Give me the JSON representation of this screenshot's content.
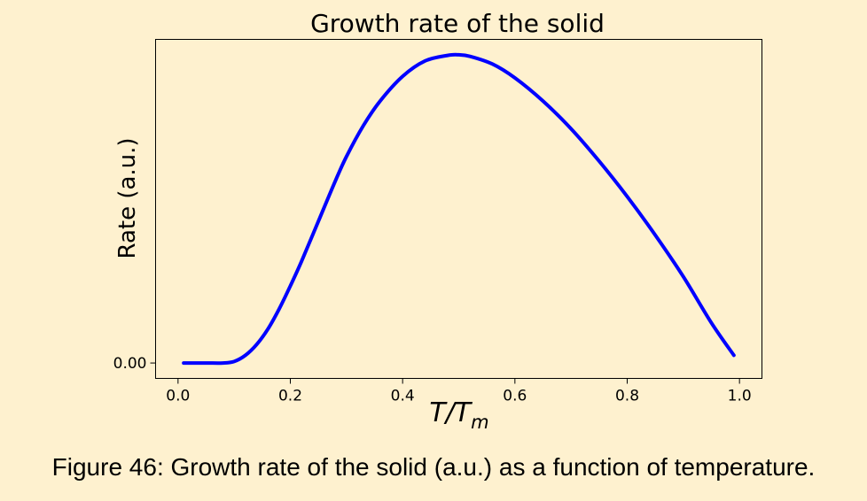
{
  "chart_data": {
    "type": "line",
    "title": "Growth rate of the solid",
    "xlabel": "T/T_m",
    "xlabel_parts": {
      "main": "T/T",
      "subscript": "m"
    },
    "ylabel": "Rate (a.u.)",
    "xlim": [
      -0.04,
      1.04
    ],
    "ylim": [
      -0.05,
      1.05
    ],
    "x_ticks": [
      {
        "value": 0.0,
        "label": "0.0"
      },
      {
        "value": 0.2,
        "label": "0.2"
      },
      {
        "value": 0.4,
        "label": "0.4"
      },
      {
        "value": 0.6,
        "label": "0.6"
      },
      {
        "value": 0.8,
        "label": "0.8"
      },
      {
        "value": 1.0,
        "label": "1.0"
      }
    ],
    "y_ticks": [
      {
        "value": 0.0,
        "label": "0.00"
      }
    ],
    "grid": false,
    "series": [
      {
        "color": "#0000ff",
        "x": [
          0.01,
          0.05,
          0.08,
          0.1,
          0.12,
          0.14,
          0.16,
          0.18,
          0.2,
          0.22,
          0.25,
          0.28,
          0.3,
          0.33,
          0.36,
          0.4,
          0.44,
          0.48,
          0.5,
          0.52,
          0.56,
          0.6,
          0.65,
          0.7,
          0.75,
          0.8,
          0.85,
          0.9,
          0.95,
          0.99
        ],
        "y": [
          0.0,
          0.0,
          0.0,
          0.005,
          0.025,
          0.06,
          0.11,
          0.175,
          0.25,
          0.33,
          0.46,
          0.59,
          0.67,
          0.77,
          0.85,
          0.93,
          0.98,
          0.998,
          1.0,
          0.995,
          0.97,
          0.925,
          0.85,
          0.76,
          0.655,
          0.54,
          0.415,
          0.28,
          0.13,
          0.025
        ]
      }
    ]
  },
  "caption": "Figure 46: Growth rate of the solid (a.u.) as a function of temperature."
}
